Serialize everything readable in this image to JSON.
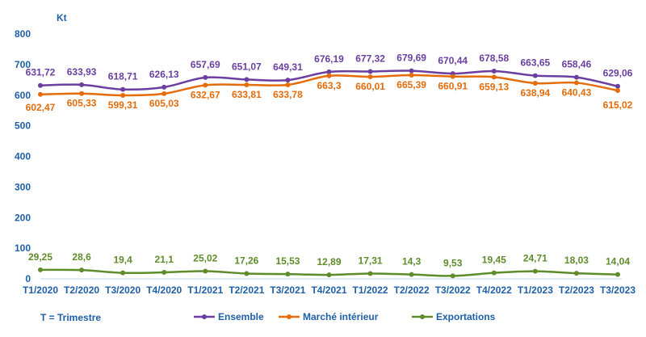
{
  "chart_data": {
    "type": "line",
    "ylabel": "Kt",
    "ylim": [
      0,
      800
    ],
    "yticks": [
      0,
      100,
      200,
      300,
      400,
      500,
      600,
      700,
      800
    ],
    "grid": false,
    "legend_position": "bottom",
    "note": "T = Trimestre",
    "categories": [
      "T1/2020",
      "T2/2020",
      "T3/2020",
      "T4/2020",
      "T1/2021",
      "T2/2021",
      "T3/2021",
      "T4/2021",
      "T1/2022",
      "T2/2022",
      "T3/2022",
      "T4/2022",
      "T1/2023",
      "T2/2023",
      "T3/2023"
    ],
    "series": [
      {
        "name": "Ensemble",
        "color": "#6a3fa0",
        "values": [
          631.72,
          633.93,
          618.71,
          626.13,
          657.69,
          651.07,
          649.31,
          676.19,
          677.32,
          679.69,
          670.44,
          678.58,
          663.65,
          658.46,
          629.06
        ],
        "labels": [
          "631,72",
          "633,93",
          "618,71",
          "626,13",
          "657,69",
          "651,07",
          "649,31",
          "676,19",
          "677,32",
          "679,69",
          "670,44",
          "678,58",
          "663,65",
          "658,46",
          "629,06"
        ]
      },
      {
        "name": "Marché  intérieur",
        "color": "#e46c0a",
        "values": [
          602.47,
          605.33,
          599.31,
          605.03,
          632.67,
          633.81,
          633.78,
          663.3,
          660.01,
          665.39,
          660.91,
          659.13,
          638.94,
          640.43,
          615.02
        ],
        "labels": [
          "602,47",
          "605,33",
          "599,31",
          "605,03",
          "632,67",
          "633,81",
          "633,78",
          "663,3",
          "660,01",
          "665,39",
          "660,91",
          "659,13",
          "638,94",
          "640,43",
          "615,02"
        ]
      },
      {
        "name": "Exportations",
        "color": "#5e8c2a",
        "values": [
          29.25,
          28.6,
          19.4,
          21.1,
          25.02,
          17.26,
          15.53,
          12.89,
          17.31,
          14.3,
          9.53,
          19.45,
          24.71,
          18.03,
          14.04
        ],
        "labels": [
          "29,25",
          "28,6",
          "19,4",
          "21,1",
          "25,02",
          "17,26",
          "15,53",
          "12,89",
          "17,31",
          "14,3",
          "9,53",
          "19,45",
          "24,71",
          "18,03",
          "14,04"
        ]
      }
    ]
  }
}
